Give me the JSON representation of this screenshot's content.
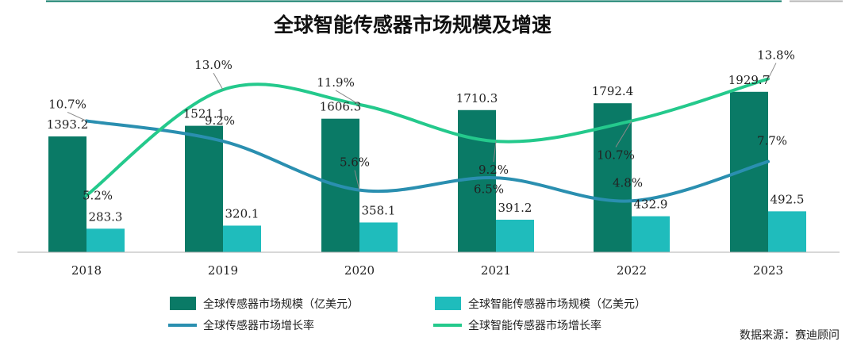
{
  "chart_data": {
    "type": "bar",
    "title": "全球智能传感器市场规模及增速",
    "categories": [
      "2018",
      "2019",
      "2020",
      "2021",
      "2022",
      "2023"
    ],
    "series": [
      {
        "name": "全球传感器市场规模（亿美元）",
        "kind": "bar",
        "color": "#0a7a66",
        "values": [
          1393.2,
          1521.1,
          1606.3,
          1710.3,
          1792.4,
          1929.7
        ]
      },
      {
        "name": "全球智能传感器市场规模（亿美元）",
        "kind": "bar",
        "color": "#1fbcbc",
        "values": [
          283.3,
          320.1,
          358.1,
          391.2,
          432.9,
          492.5
        ]
      },
      {
        "name": "全球传感器市场增长率",
        "kind": "line",
        "color": "#2a8fb0",
        "values": [
          10.7,
          9.2,
          5.6,
          6.5,
          4.8,
          7.7
        ],
        "labels": [
          "10.7%",
          "9.2%",
          "5.6%",
          "6.5%",
          "4.8%",
          "7.7%"
        ]
      },
      {
        "name": "全球智能传感器市场增长率",
        "kind": "line",
        "color": "#24c98c",
        "values": [
          5.2,
          13.0,
          11.9,
          9.2,
          10.7,
          13.8
        ],
        "labels": [
          "5.2%",
          "13.0%",
          "11.9%",
          "9.2%",
          "10.7%",
          "13.8%"
        ]
      }
    ],
    "ylim_bar": [
      0,
      2300
    ],
    "ylim_rate": [
      0,
      16
    ],
    "grid": false,
    "legend_position": "bottom"
  },
  "source": "数据来源：赛迪顾问"
}
